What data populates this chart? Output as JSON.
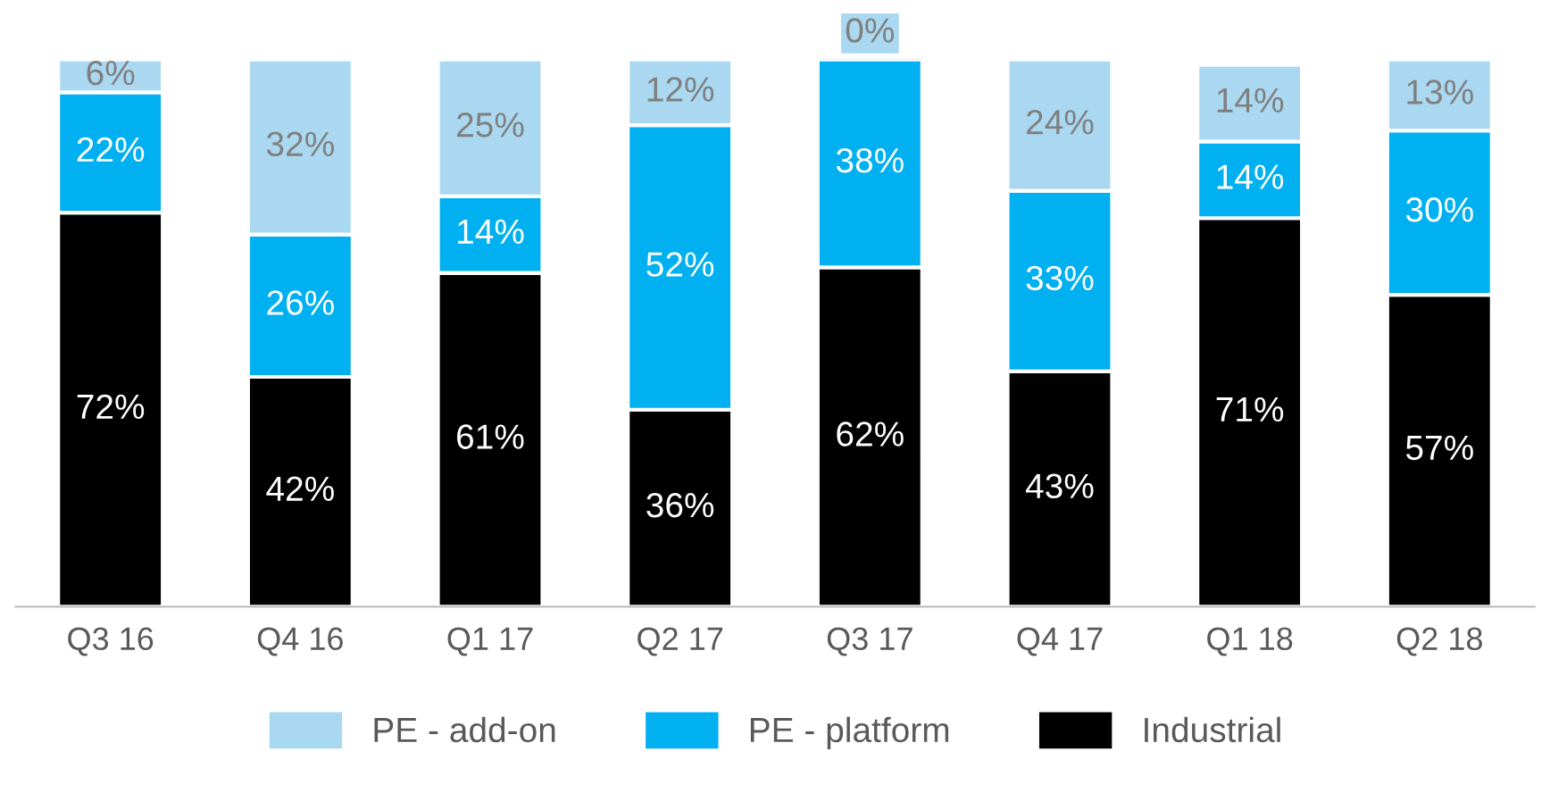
{
  "chart_data": {
    "type": "bar",
    "stacked": true,
    "categories": [
      "Q3 16",
      "Q4 16",
      "Q1 17",
      "Q2 17",
      "Q3 17",
      "Q4 17",
      "Q1 18",
      "Q2 18"
    ],
    "series": [
      {
        "name": "Industrial",
        "color": "#000000",
        "values": [
          72,
          42,
          61,
          36,
          62,
          43,
          71,
          57
        ],
        "value_labels": [
          "72%",
          "42%",
          "61%",
          "36%",
          "62%",
          "43%",
          "71%",
          "57%"
        ]
      },
      {
        "name": "PE - platform",
        "color": "#00b0f0",
        "values": [
          22,
          26,
          14,
          52,
          38,
          33,
          14,
          30
        ],
        "value_labels": [
          "22%",
          "26%",
          "14%",
          "52%",
          "38%",
          "33%",
          "14%",
          "30%"
        ]
      },
      {
        "name": "PE - add-on",
        "color": "#a9d8f0",
        "values": [
          6,
          32,
          25,
          12,
          0,
          24,
          14,
          13
        ],
        "value_labels": [
          "6%",
          "32%",
          "25%",
          "12%",
          "0%",
          "24%",
          "14%",
          "13%"
        ]
      }
    ],
    "legend": "bottom",
    "grid": false
  }
}
